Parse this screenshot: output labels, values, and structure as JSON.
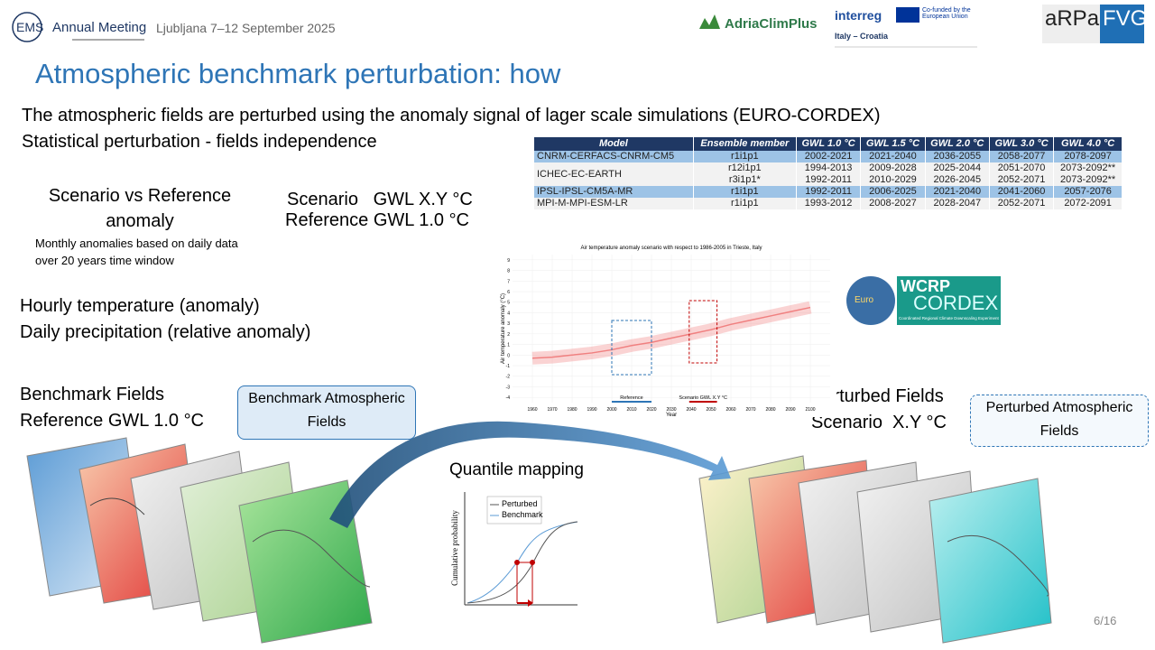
{
  "header": {
    "ems_logo": "EMS",
    "event": "Annual Meeting",
    "location": "Ljubljana 7–12 September 2025",
    "adria_logo": "AdriaClimPlus",
    "interreg_logo": "interreg",
    "eu_note": "Co-funded by the European Union",
    "program": "Italy – Croatia",
    "arpa_logo": "aRPa",
    "fvg_logo": "FVG"
  },
  "title": "Atmospheric benchmark perturbation: how",
  "intro": [
    "The atmospheric fields are perturbed using the anomaly signal of lager scale simulations (EURO-CORDEX)",
    "Statistical perturbation - fields independence"
  ],
  "anomaly_block": {
    "heading": "Scenario vs Reference anomaly",
    "note": "Monthly anomalies based on daily data over 20 years time window"
  },
  "gwl_block": [
    "Scenario   GWL X.Y °C",
    "Reference GWL 1.0 °C"
  ],
  "variables": [
    "Hourly temperature (anomaly)",
    "Daily precipitation (relative anomaly)"
  ],
  "benchmark": {
    "lines": [
      "Benchmark Fields",
      "Reference GWL 1.0 °C"
    ],
    "box": "Benchmark Atmospheric Fields"
  },
  "perturbed": {
    "lines": [
      "Perturbed Fields",
      "Scenario  X.Y °C"
    ],
    "box": "Perturbed Atmospheric Fields"
  },
  "quantile": {
    "title": "Quantile mapping",
    "legend": [
      "Perturbed",
      "Benchmark"
    ],
    "ylabel": "Cumulative probability"
  },
  "table": {
    "header": [
      "Model",
      "Ensemble member",
      "GWL 1.0 °C",
      "GWL 1.5 °C",
      "GWL 2.0 °C",
      "GWL 3.0 °C",
      "GWL 4.0 °C"
    ],
    "rows": [
      [
        [
          "CNRM-CERFACS-CNRM-CM5"
        ],
        [
          "r1i1p1"
        ],
        [
          "2002-2021"
        ],
        [
          "2021-2040"
        ],
        [
          "2036-2055"
        ],
        [
          "2058-2077"
        ],
        [
          "2078-2097"
        ]
      ],
      [
        [
          "ICHEC-EC-EARTH"
        ],
        [
          "r12i1p1",
          "r3i1p1*"
        ],
        [
          "1994-2013",
          "1992-2011"
        ],
        [
          "2009-2028",
          "2010-2029"
        ],
        [
          "2025-2044",
          "2026-2045"
        ],
        [
          "2051-2070",
          "2052-2071"
        ],
        [
          "2073-2092**",
          "2073-2092**"
        ]
      ],
      [
        [
          "IPSL-IPSL-CM5A-MR"
        ],
        [
          "r1i1p1"
        ],
        [
          "1992-2011"
        ],
        [
          "2006-2025"
        ],
        [
          "2021-2040"
        ],
        [
          "2041-2060"
        ],
        [
          "2057-2076"
        ]
      ],
      [
        [
          "MPI-M-MPI-ESM-LR"
        ],
        [
          "r1i1p1"
        ],
        [
          "1993-2012"
        ],
        [
          "2008-2027"
        ],
        [
          "2028-2047"
        ],
        [
          "2052-2071"
        ],
        [
          "2072-2091"
        ]
      ]
    ]
  },
  "chart_data": {
    "type": "line",
    "title": "Air temperature anomaly scenario with respect to 1986-2005 in Trieste, Italy",
    "xlabel": "Year",
    "ylabel": "Air temperature anomaly (°C)",
    "x": [
      1960,
      1970,
      1980,
      1990,
      2000,
      2010,
      2020,
      2030,
      2040,
      2050,
      2060,
      2070,
      2080,
      2090,
      2100
    ],
    "series": [
      {
        "color": "#f08080",
        "values": [
          -0.3,
          -0.2,
          0,
          0.2,
          0.5,
          0.9,
          1.2,
          1.6,
          2.0,
          2.4,
          2.9,
          3.3,
          3.7,
          4.1,
          4.5
        ]
      }
    ],
    "xlim": [
      1950,
      2110
    ],
    "ylim": [
      -4.5,
      9.5
    ],
    "xticks": [
      1960,
      1970,
      1980,
      1990,
      2000,
      2010,
      2020,
      2030,
      2040,
      2050,
      2060,
      2070,
      2080,
      2090,
      2100
    ],
    "yticks": [
      -4,
      -3,
      -2,
      -1,
      0,
      1,
      2,
      3,
      4,
      5,
      6,
      7,
      8,
      9
    ],
    "windows": [
      {
        "label": "Reference",
        "range": [
          2000,
          2020
        ],
        "color": "#2e75b6"
      },
      {
        "label": "Scenario GWL X.Y °C",
        "range": [
          2039,
          2053
        ],
        "color": "#c00000"
      }
    ],
    "grid": true
  },
  "cordex_logo": {
    "euro": "Euro",
    "wcrp": "WCRP",
    "cordex": "CORDEX",
    "subtitle": "Coordinated Regional Climate Downscaling Experiment"
  },
  "page_number": "6/16"
}
